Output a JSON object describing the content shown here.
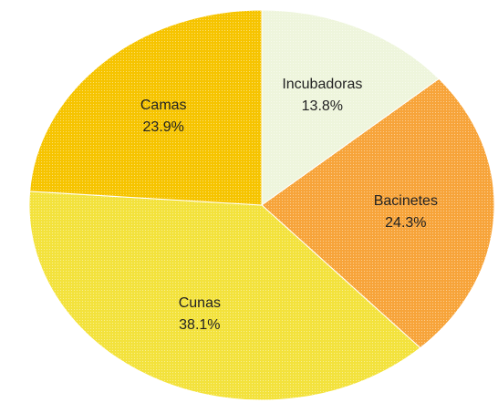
{
  "chart_data": {
    "type": "pie",
    "categories": [
      "Incubadoras",
      "Bacinetes",
      "Cunas",
      "Camas"
    ],
    "values": [
      13.8,
      24.3,
      38.1,
      23.9
    ],
    "value_labels": [
      "13.8%",
      "24.3%",
      "38.1%",
      "23.9%"
    ],
    "colors": [
      "#eef5dc",
      "#f7a43a",
      "#f3e23c",
      "#f6c400"
    ]
  }
}
